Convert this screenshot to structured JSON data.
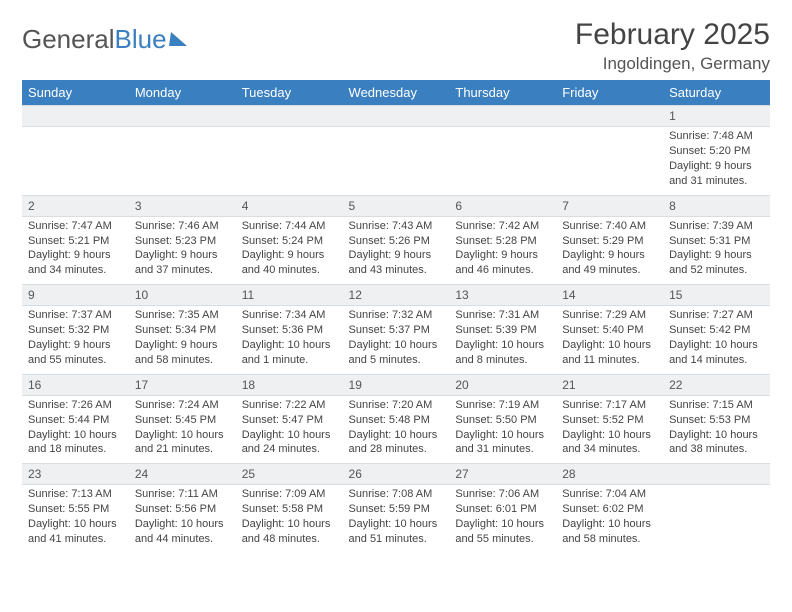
{
  "logo": {
    "part1": "General",
    "part2": "Blue"
  },
  "title": {
    "month": "February 2025",
    "location": "Ingoldingen, Germany"
  },
  "headers": [
    "Sunday",
    "Monday",
    "Tuesday",
    "Wednesday",
    "Thursday",
    "Friday",
    "Saturday"
  ],
  "colors": {
    "header_bg": "#3a7fbf",
    "header_text": "#ffffff",
    "daynum_bg": "#eef0f2",
    "border": "#d8dde2",
    "text": "#444444",
    "logo_gray": "#555555",
    "logo_blue": "#3a7fbf"
  },
  "weeks": [
    [
      {
        "n": "",
        "sr": "",
        "ss": "",
        "dl": ""
      },
      {
        "n": "",
        "sr": "",
        "ss": "",
        "dl": ""
      },
      {
        "n": "",
        "sr": "",
        "ss": "",
        "dl": ""
      },
      {
        "n": "",
        "sr": "",
        "ss": "",
        "dl": ""
      },
      {
        "n": "",
        "sr": "",
        "ss": "",
        "dl": ""
      },
      {
        "n": "",
        "sr": "",
        "ss": "",
        "dl": ""
      },
      {
        "n": "1",
        "sr": "Sunrise: 7:48 AM",
        "ss": "Sunset: 5:20 PM",
        "dl": "Daylight: 9 hours and 31 minutes."
      }
    ],
    [
      {
        "n": "2",
        "sr": "Sunrise: 7:47 AM",
        "ss": "Sunset: 5:21 PM",
        "dl": "Daylight: 9 hours and 34 minutes."
      },
      {
        "n": "3",
        "sr": "Sunrise: 7:46 AM",
        "ss": "Sunset: 5:23 PM",
        "dl": "Daylight: 9 hours and 37 minutes."
      },
      {
        "n": "4",
        "sr": "Sunrise: 7:44 AM",
        "ss": "Sunset: 5:24 PM",
        "dl": "Daylight: 9 hours and 40 minutes."
      },
      {
        "n": "5",
        "sr": "Sunrise: 7:43 AM",
        "ss": "Sunset: 5:26 PM",
        "dl": "Daylight: 9 hours and 43 minutes."
      },
      {
        "n": "6",
        "sr": "Sunrise: 7:42 AM",
        "ss": "Sunset: 5:28 PM",
        "dl": "Daylight: 9 hours and 46 minutes."
      },
      {
        "n": "7",
        "sr": "Sunrise: 7:40 AM",
        "ss": "Sunset: 5:29 PM",
        "dl": "Daylight: 9 hours and 49 minutes."
      },
      {
        "n": "8",
        "sr": "Sunrise: 7:39 AM",
        "ss": "Sunset: 5:31 PM",
        "dl": "Daylight: 9 hours and 52 minutes."
      }
    ],
    [
      {
        "n": "9",
        "sr": "Sunrise: 7:37 AM",
        "ss": "Sunset: 5:32 PM",
        "dl": "Daylight: 9 hours and 55 minutes."
      },
      {
        "n": "10",
        "sr": "Sunrise: 7:35 AM",
        "ss": "Sunset: 5:34 PM",
        "dl": "Daylight: 9 hours and 58 minutes."
      },
      {
        "n": "11",
        "sr": "Sunrise: 7:34 AM",
        "ss": "Sunset: 5:36 PM",
        "dl": "Daylight: 10 hours and 1 minute."
      },
      {
        "n": "12",
        "sr": "Sunrise: 7:32 AM",
        "ss": "Sunset: 5:37 PM",
        "dl": "Daylight: 10 hours and 5 minutes."
      },
      {
        "n": "13",
        "sr": "Sunrise: 7:31 AM",
        "ss": "Sunset: 5:39 PM",
        "dl": "Daylight: 10 hours and 8 minutes."
      },
      {
        "n": "14",
        "sr": "Sunrise: 7:29 AM",
        "ss": "Sunset: 5:40 PM",
        "dl": "Daylight: 10 hours and 11 minutes."
      },
      {
        "n": "15",
        "sr": "Sunrise: 7:27 AM",
        "ss": "Sunset: 5:42 PM",
        "dl": "Daylight: 10 hours and 14 minutes."
      }
    ],
    [
      {
        "n": "16",
        "sr": "Sunrise: 7:26 AM",
        "ss": "Sunset: 5:44 PM",
        "dl": "Daylight: 10 hours and 18 minutes."
      },
      {
        "n": "17",
        "sr": "Sunrise: 7:24 AM",
        "ss": "Sunset: 5:45 PM",
        "dl": "Daylight: 10 hours and 21 minutes."
      },
      {
        "n": "18",
        "sr": "Sunrise: 7:22 AM",
        "ss": "Sunset: 5:47 PM",
        "dl": "Daylight: 10 hours and 24 minutes."
      },
      {
        "n": "19",
        "sr": "Sunrise: 7:20 AM",
        "ss": "Sunset: 5:48 PM",
        "dl": "Daylight: 10 hours and 28 minutes."
      },
      {
        "n": "20",
        "sr": "Sunrise: 7:19 AM",
        "ss": "Sunset: 5:50 PM",
        "dl": "Daylight: 10 hours and 31 minutes."
      },
      {
        "n": "21",
        "sr": "Sunrise: 7:17 AM",
        "ss": "Sunset: 5:52 PM",
        "dl": "Daylight: 10 hours and 34 minutes."
      },
      {
        "n": "22",
        "sr": "Sunrise: 7:15 AM",
        "ss": "Sunset: 5:53 PM",
        "dl": "Daylight: 10 hours and 38 minutes."
      }
    ],
    [
      {
        "n": "23",
        "sr": "Sunrise: 7:13 AM",
        "ss": "Sunset: 5:55 PM",
        "dl": "Daylight: 10 hours and 41 minutes."
      },
      {
        "n": "24",
        "sr": "Sunrise: 7:11 AM",
        "ss": "Sunset: 5:56 PM",
        "dl": "Daylight: 10 hours and 44 minutes."
      },
      {
        "n": "25",
        "sr": "Sunrise: 7:09 AM",
        "ss": "Sunset: 5:58 PM",
        "dl": "Daylight: 10 hours and 48 minutes."
      },
      {
        "n": "26",
        "sr": "Sunrise: 7:08 AM",
        "ss": "Sunset: 5:59 PM",
        "dl": "Daylight: 10 hours and 51 minutes."
      },
      {
        "n": "27",
        "sr": "Sunrise: 7:06 AM",
        "ss": "Sunset: 6:01 PM",
        "dl": "Daylight: 10 hours and 55 minutes."
      },
      {
        "n": "28",
        "sr": "Sunrise: 7:04 AM",
        "ss": "Sunset: 6:02 PM",
        "dl": "Daylight: 10 hours and 58 minutes."
      },
      {
        "n": "",
        "sr": "",
        "ss": "",
        "dl": ""
      }
    ]
  ]
}
